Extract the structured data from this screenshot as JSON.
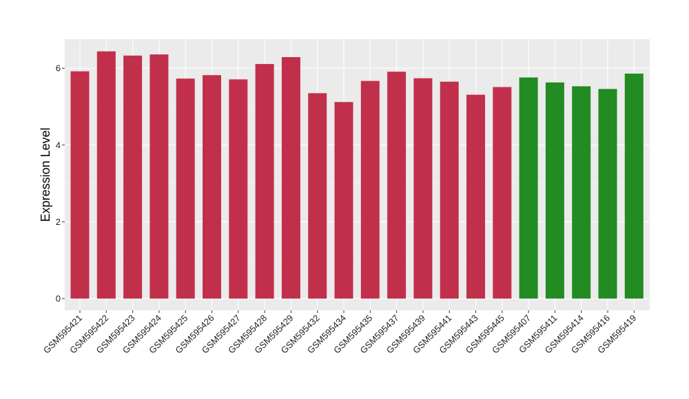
{
  "chart_data": {
    "type": "bar",
    "xlabel": "",
    "ylabel": "Expression Level",
    "ylim": [
      -0.3,
      6.75
    ],
    "yticks": [
      0,
      2,
      4,
      6
    ],
    "grid": true,
    "legend": "none",
    "categories": [
      "GSM595421",
      "GSM595422",
      "GSM595423",
      "GSM595424",
      "GSM595425",
      "GSM595426",
      "GSM595427",
      "GSM595428",
      "GSM595429",
      "GSM595432",
      "GSM595434",
      "GSM595435",
      "GSM595437",
      "GSM595439",
      "GSM595441",
      "GSM595443",
      "GSM595445",
      "GSM595407",
      "GSM595411",
      "GSM595414",
      "GSM595416",
      "GSM595419"
    ],
    "values": [
      5.92,
      6.44,
      6.33,
      6.36,
      5.73,
      5.82,
      5.71,
      6.11,
      6.29,
      5.35,
      5.12,
      5.67,
      5.91,
      5.74,
      5.65,
      5.31,
      5.51,
      5.76,
      5.63,
      5.53,
      5.46,
      5.86
    ],
    "bar_colors": [
      "#c1304a",
      "#c1304a",
      "#c1304a",
      "#c1304a",
      "#c1304a",
      "#c1304a",
      "#c1304a",
      "#c1304a",
      "#c1304a",
      "#c1304a",
      "#c1304a",
      "#c1304a",
      "#c1304a",
      "#c1304a",
      "#c1304a",
      "#c1304a",
      "#c1304a",
      "#228b22",
      "#228b22",
      "#228b22",
      "#228b22",
      "#228b22"
    ]
  }
}
